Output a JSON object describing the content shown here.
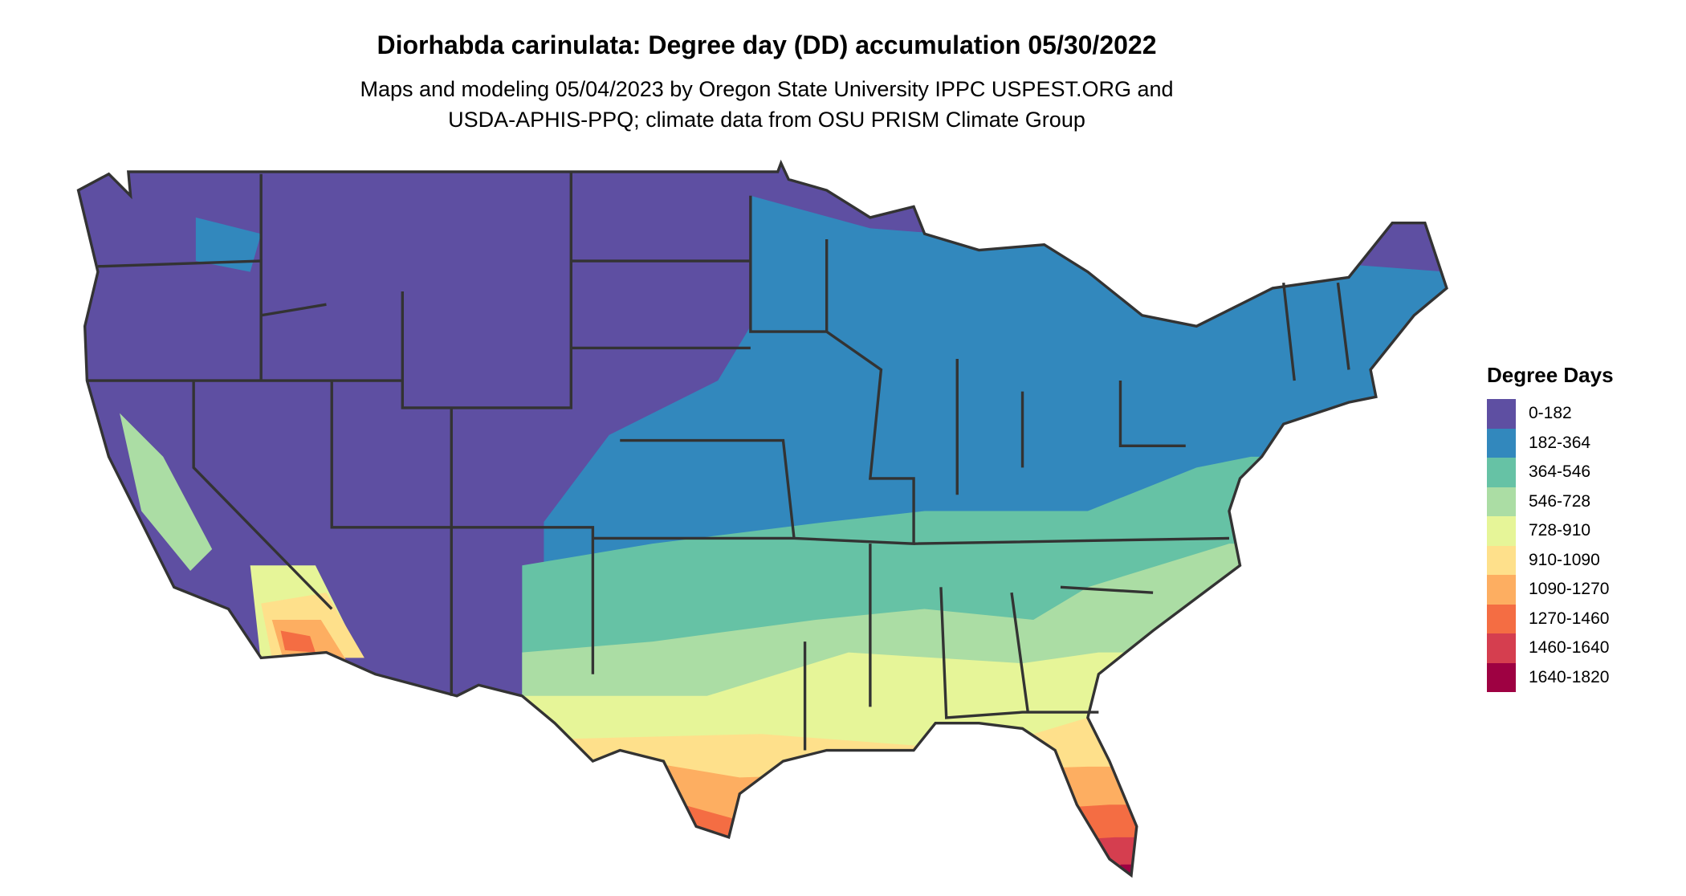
{
  "title": "Diorhabda carinulata: Degree day (DD) accumulation 05/30/2022",
  "subtitle_line1": "Maps and modeling 05/04/2023 by Oregon State University IPPC USPEST.ORG and",
  "subtitle_line2": "USDA-APHIS-PPQ; climate data from OSU PRISM Climate Group",
  "legend": {
    "title": "Degree Days",
    "items": [
      {
        "label": "0-182",
        "color": "#5E4FA2"
      },
      {
        "label": "182-364",
        "color": "#3288BD"
      },
      {
        "label": "364-546",
        "color": "#66C2A5"
      },
      {
        "label": "546-728",
        "color": "#ABDDA4"
      },
      {
        "label": "728-910",
        "color": "#E6F598"
      },
      {
        "label": "910-1090",
        "color": "#FEE08B"
      },
      {
        "label": "1090-1270",
        "color": "#FDAE61"
      },
      {
        "label": "1270-1460",
        "color": "#F46D43"
      },
      {
        "label": "1460-1640",
        "color": "#D53E4F"
      },
      {
        "label": "1640-1820",
        "color": "#9E0142"
      }
    ]
  }
}
